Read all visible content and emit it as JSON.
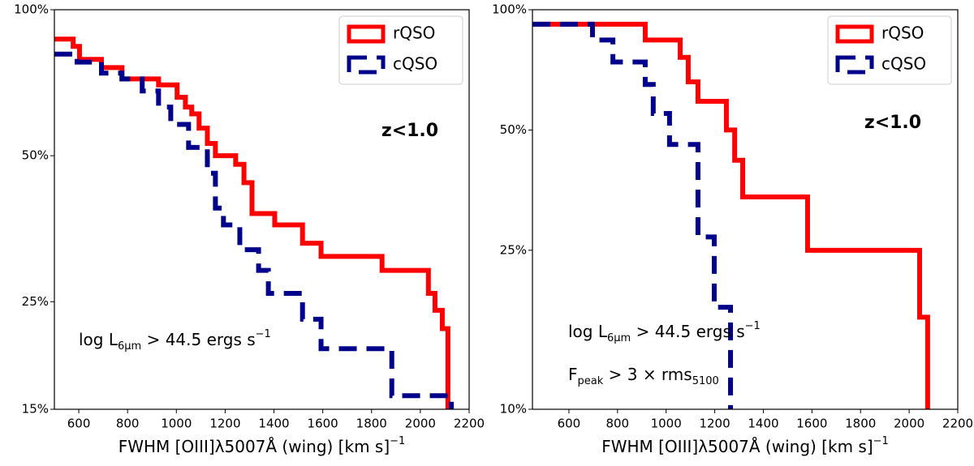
{
  "chart_data": [
    {
      "type": "step",
      "xlog": false,
      "ylog": true,
      "xlabel": {
        "text": "FWHM [OIII]λ5007Å (wing) [km s",
        "sup": "−1",
        "rest": "]"
      },
      "annotations": [
        {
          "text": "z<1.0"
        },
        {
          "text": "log L",
          "sub": "6μm",
          "rest": " > 44.5 ergs s",
          "sup": "−1"
        }
      ],
      "legend": "upper right",
      "xlim": [
        500,
        2200
      ],
      "xticks": [
        600,
        800,
        1000,
        1200,
        1400,
        1600,
        1800,
        2000,
        2200
      ],
      "ylim": [
        15,
        100
      ],
      "yticks": [
        {
          "value": 15,
          "label": "15%"
        },
        {
          "value": 25,
          "label": "25%"
        },
        {
          "value": 50,
          "label": "50%"
        },
        {
          "value": 100,
          "label": "100%"
        }
      ],
      "series": [
        {
          "name": "rQSO",
          "color": "#ff0000",
          "dashed": false,
          "x": [
            500,
            577,
            603,
            693,
            777,
            927,
            1003,
            1037,
            1063,
            1093,
            1127,
            1160,
            1243,
            1277,
            1310,
            1403,
            1517,
            1593,
            1843,
            2033,
            2060,
            2090,
            2113
          ],
          "values": [
            87,
            84,
            79,
            76,
            72,
            70,
            66,
            63,
            61,
            57,
            53,
            50,
            48,
            44,
            38,
            36,
            33,
            31,
            29,
            26,
            24,
            22,
            22
          ]
        },
        {
          "name": "cQSO",
          "color": "#00008b",
          "dashed": true,
          "x": [
            500,
            593,
            693,
            777,
            860,
            927,
            977,
            1050,
            1127,
            1160,
            1193,
            1260,
            1337,
            1377,
            1517,
            1593,
            1883,
            2127
          ],
          "values": [
            81,
            78,
            74,
            72,
            68,
            63,
            58,
            52,
            46,
            39,
            36,
            32,
            29,
            26,
            23,
            20,
            16,
            16
          ]
        }
      ]
    },
    {
      "type": "step",
      "xlog": false,
      "ylog": true,
      "xlabel": {
        "text": "FWHM [OIII]λ5007Å (wing) [km s",
        "sup": "−1",
        "rest": "]"
      },
      "annotations": [
        {
          "text": "z<1.0"
        },
        {
          "text": "log L",
          "sub": "6μm",
          "rest": " > 44.5      ergs s",
          "sup": "−1"
        },
        {
          "text": "F",
          "sub": "peak",
          "rest": " > 3 × rms",
          "sub2": "5100"
        }
      ],
      "legend": "upper right",
      "xlim": [
        450,
        2200
      ],
      "xticks": [
        600,
        800,
        1000,
        1200,
        1400,
        1600,
        1800,
        2000,
        2200
      ],
      "ylim": [
        10,
        100
      ],
      "yticks": [
        {
          "value": 10,
          "label": "10%"
        },
        {
          "value": 25,
          "label": "25%"
        },
        {
          "value": 50,
          "label": "50%"
        },
        {
          "value": 100,
          "label": "100%"
        }
      ],
      "series": [
        {
          "name": "rQSO",
          "color": "#ff0000",
          "dashed": false,
          "x": [
            450,
            914,
            1058,
            1091,
            1131,
            1248,
            1282,
            1315,
            1582,
            2043,
            2076
          ],
          "values": [
            92,
            84,
            76,
            66,
            59,
            50,
            42,
            34,
            25,
            17,
            17
          ]
        },
        {
          "name": "cQSO",
          "color": "#00008b",
          "dashed": true,
          "x": [
            450,
            697,
            781,
            914,
            947,
            1014,
            1131,
            1198,
            1265
          ],
          "values": [
            92,
            84,
            74,
            65,
            55,
            46,
            27,
            18,
            18
          ]
        }
      ]
    }
  ]
}
